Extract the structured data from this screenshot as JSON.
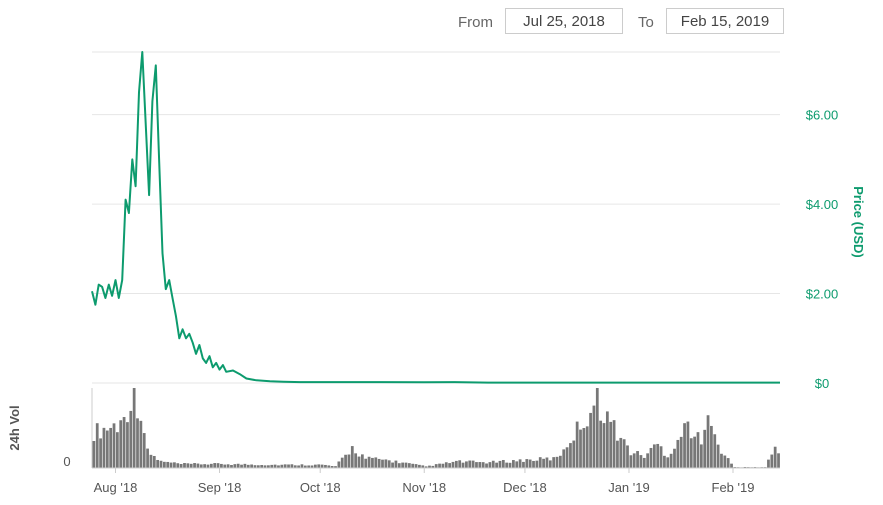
{
  "range_selector": {
    "from_label": "From",
    "from_value": "Jul 25, 2018",
    "to_label": "To",
    "to_value": "Feb 15, 2019"
  },
  "colors": {
    "price_line": "#0d9b6e",
    "price_axis_text": "#0d9b6e",
    "volume_bars": "#777777",
    "grid": "#e6e6e6",
    "axis_text": "#555555"
  },
  "chart_data": {
    "type": "line",
    "title": "",
    "x_tick_labels": [
      "Aug '18",
      "Sep '18",
      "Oct '18",
      "Nov '18",
      "Dec '18",
      "Jan '19",
      "Feb '19"
    ],
    "x_range": [
      "2018-07-25",
      "2019-02-15"
    ],
    "price_axis": {
      "label": "Price (USD)",
      "ticks": [
        "$0",
        "$2.00",
        "$4.00",
        "$6.00"
      ],
      "tick_values": [
        0,
        2,
        4,
        6
      ],
      "ylim": [
        0,
        7.4
      ],
      "position": "right"
    },
    "volume_axis": {
      "label": "24h Vol",
      "ticks": [
        "0"
      ],
      "position": "left"
    },
    "series": [
      {
        "name": "Price (USD)",
        "points": [
          [
            "2018-07-25",
            2.05
          ],
          [
            "2018-07-26",
            1.75
          ],
          [
            "2018-07-27",
            2.2
          ],
          [
            "2018-07-28",
            2.15
          ],
          [
            "2018-07-29",
            1.9
          ],
          [
            "2018-07-30",
            2.2
          ],
          [
            "2018-07-31",
            1.95
          ],
          [
            "2018-08-01",
            2.3
          ],
          [
            "2018-08-02",
            1.9
          ],
          [
            "2018-08-03",
            2.3
          ],
          [
            "2018-08-04",
            4.1
          ],
          [
            "2018-08-05",
            3.8
          ],
          [
            "2018-08-06",
            5.0
          ],
          [
            "2018-08-07",
            4.4
          ],
          [
            "2018-08-08",
            6.5
          ],
          [
            "2018-08-09",
            7.4
          ],
          [
            "2018-08-10",
            5.8
          ],
          [
            "2018-08-11",
            4.2
          ],
          [
            "2018-08-12",
            6.3
          ],
          [
            "2018-08-13",
            7.1
          ],
          [
            "2018-08-14",
            5.0
          ],
          [
            "2018-08-15",
            2.9
          ],
          [
            "2018-08-16",
            2.1
          ],
          [
            "2018-08-17",
            2.3
          ],
          [
            "2018-08-18",
            1.9
          ],
          [
            "2018-08-19",
            1.5
          ],
          [
            "2018-08-20",
            1.0
          ],
          [
            "2018-08-21",
            1.2
          ],
          [
            "2018-08-22",
            1.0
          ],
          [
            "2018-08-23",
            1.1
          ],
          [
            "2018-08-24",
            0.9
          ],
          [
            "2018-08-25",
            0.65
          ],
          [
            "2018-08-26",
            0.85
          ],
          [
            "2018-08-27",
            0.55
          ],
          [
            "2018-08-28",
            0.45
          ],
          [
            "2018-08-29",
            0.6
          ],
          [
            "2018-08-30",
            0.35
          ],
          [
            "2018-08-31",
            0.45
          ],
          [
            "2018-09-01",
            0.3
          ],
          [
            "2018-09-02",
            0.4
          ],
          [
            "2018-09-03",
            0.25
          ],
          [
            "2018-09-05",
            0.28
          ],
          [
            "2018-09-07",
            0.2
          ],
          [
            "2018-09-09",
            0.1
          ],
          [
            "2018-09-12",
            0.06
          ],
          [
            "2018-09-16",
            0.04
          ],
          [
            "2018-09-20",
            0.03
          ],
          [
            "2018-09-25",
            0.02
          ],
          [
            "2018-10-01",
            0.02
          ],
          [
            "2018-10-15",
            0.02
          ],
          [
            "2018-11-01",
            0.015
          ],
          [
            "2018-11-10",
            0.02
          ],
          [
            "2018-11-20",
            0.01
          ],
          [
            "2018-12-01",
            0.01
          ],
          [
            "2018-12-15",
            0.01
          ],
          [
            "2019-01-01",
            0.01
          ],
          [
            "2019-01-15",
            0.01
          ],
          [
            "2019-02-01",
            0.01
          ],
          [
            "2019-02-15",
            0.01
          ]
        ]
      },
      {
        "name": "24h Vol",
        "relative_profile": [
          [
            "2018-07-25",
            0.45
          ],
          [
            "2018-07-29",
            0.5
          ],
          [
            "2018-08-02",
            0.55
          ],
          [
            "2018-08-04",
            0.75
          ],
          [
            "2018-08-06",
            0.95
          ],
          [
            "2018-08-08",
            0.7
          ],
          [
            "2018-08-10",
            0.2
          ],
          [
            "2018-08-14",
            0.08
          ],
          [
            "2018-08-20",
            0.05
          ],
          [
            "2018-09-01",
            0.05
          ],
          [
            "2018-09-15",
            0.04
          ],
          [
            "2018-10-01",
            0.04
          ],
          [
            "2018-10-05",
            0.02
          ],
          [
            "2018-10-10",
            0.25
          ],
          [
            "2018-10-14",
            0.12
          ],
          [
            "2018-10-20",
            0.1
          ],
          [
            "2018-11-01",
            0.02
          ],
          [
            "2018-11-10",
            0.08
          ],
          [
            "2018-11-20",
            0.07
          ],
          [
            "2018-12-01",
            0.1
          ],
          [
            "2018-12-10",
            0.12
          ],
          [
            "2018-12-18",
            0.6
          ],
          [
            "2018-12-22",
            0.85
          ],
          [
            "2018-12-27",
            0.5
          ],
          [
            "2019-01-01",
            0.2
          ],
          [
            "2019-01-05",
            0.15
          ],
          [
            "2019-01-09",
            0.3
          ],
          [
            "2019-01-12",
            0.15
          ],
          [
            "2019-01-18",
            0.55
          ],
          [
            "2019-01-22",
            0.3
          ],
          [
            "2019-01-25",
            0.7
          ],
          [
            "2019-01-28",
            0.2
          ],
          [
            "2019-02-01",
            0.01
          ],
          [
            "2019-02-10",
            0.01
          ],
          [
            "2019-02-13",
            0.25
          ],
          [
            "2019-02-15",
            0.2
          ]
        ]
      }
    ],
    "grid": true
  }
}
